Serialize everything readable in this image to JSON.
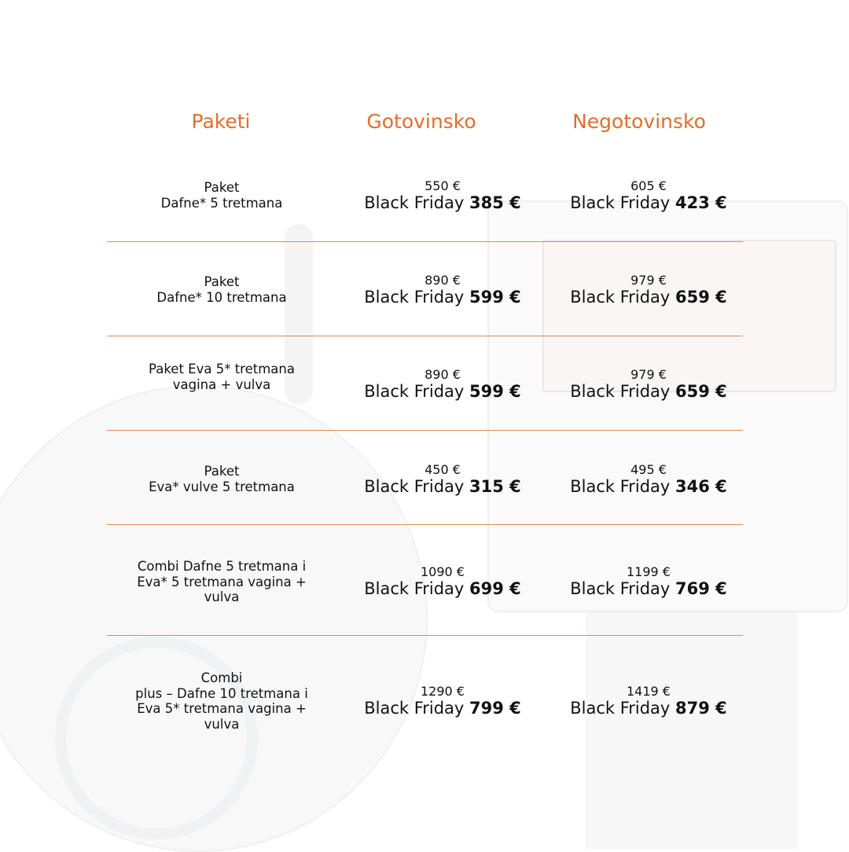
{
  "headers": {
    "packages": "Paketi",
    "cash": "Gotovinsko",
    "noncash": "Negotovinsko"
  },
  "accent_color": "#e06e2f",
  "promo_label": "Black Friday",
  "rows": [
    {
      "pkg1": "Paket",
      "pkg2": "Dafne* 5 tretmana",
      "pkg3": "",
      "cash_old": "550 €",
      "cash_bf": "385 €",
      "noncash_old": "605 €",
      "noncash_bf": "423 €"
    },
    {
      "pkg1": "Paket",
      "pkg2": "Dafne* 10 tretmana",
      "pkg3": "",
      "cash_old": "890 €",
      "cash_bf": "599 €",
      "noncash_old": "979 €",
      "noncash_bf": "659 €"
    },
    {
      "pkg1": "Paket Eva 5* tretmana",
      "pkg2": "vagina + vulva",
      "pkg3": "",
      "cash_old": "890 €",
      "cash_bf": "599 €",
      "noncash_old": "979 €",
      "noncash_bf": "659 €"
    },
    {
      "pkg1": "Paket",
      "pkg2": "Eva* vulve 5 tretmana",
      "pkg3": "",
      "cash_old": "450 €",
      "cash_bf": "315 €",
      "noncash_old": "495 €",
      "noncash_bf": "346 €"
    },
    {
      "pkg1": "Combi Dafne 5 tretmana i",
      "pkg2": "Eva* 5 tretmana vagina +",
      "pkg3": "vulva",
      "cash_old": "1090 €",
      "cash_bf": "699 €",
      "noncash_old": "1199 €",
      "noncash_bf": "769 €"
    },
    {
      "pkg1": "Combi",
      "pkg2": "plus – Dafne 10 tretmana i",
      "pkg3": "Eva 5* tretmana vagina +",
      "pkg4": "vulva",
      "cash_old": "1290 €",
      "cash_bf": "799 €",
      "noncash_old": "1419 €",
      "noncash_bf": "879 €"
    }
  ]
}
